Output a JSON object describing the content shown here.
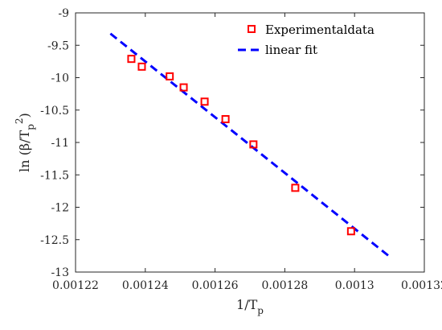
{
  "chart_data": {
    "type": "scatter",
    "title": "",
    "xlabel": "1/T_p",
    "ylabel": "ln (β/T_p^2)",
    "xlim": [
      0.00122,
      0.00132
    ],
    "ylim": [
      -13,
      -9
    ],
    "x_ticks": [
      "0.00122",
      "0.00124",
      "0.00126",
      "0.00128",
      "0.0013",
      "0.00132"
    ],
    "y_ticks": [
      "-9",
      "-9.5",
      "-10",
      "-10.5",
      "-11",
      "-11.5",
      "-12",
      "-12.5",
      "-13"
    ],
    "grid": false,
    "legend_position": "top-right",
    "series": [
      {
        "name": "Experimentaldata",
        "kind": "markers",
        "marker": "square-open",
        "color": "#ff0000",
        "points": [
          [
            0.001236,
            -9.71
          ],
          [
            0.001239,
            -9.83
          ],
          [
            0.001247,
            -9.98
          ],
          [
            0.001251,
            -10.15
          ],
          [
            0.001257,
            -10.37
          ],
          [
            0.001263,
            -10.64
          ],
          [
            0.001271,
            -11.03
          ],
          [
            0.001283,
            -11.7
          ],
          [
            0.001299,
            -12.37
          ]
        ]
      },
      {
        "name": "linear fit",
        "kind": "line",
        "style": "dashed",
        "color": "#0000ff",
        "points": [
          [
            0.00123,
            -9.32
          ],
          [
            0.00131,
            -12.76
          ]
        ]
      }
    ]
  }
}
